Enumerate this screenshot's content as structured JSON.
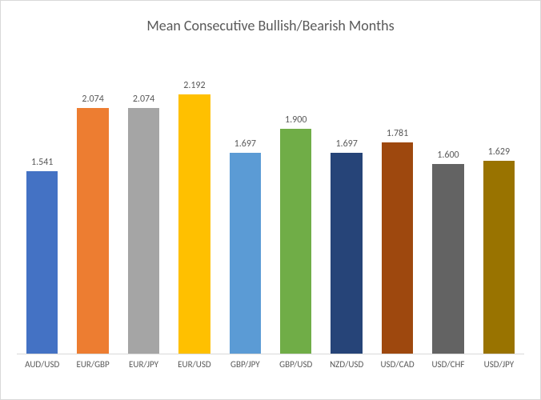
{
  "chart": {
    "type": "bar",
    "title": "Mean Consecutive Bullish/Bearish Months",
    "title_fontsize": 18,
    "title_color": "#595959",
    "background_color": "#ffffff",
    "border_color": "#d9d9d9",
    "axis_line_color": "#d9d9d9",
    "label_color": "#595959",
    "label_fontsize": 11,
    "value_fontsize": 12,
    "ylim": [
      0,
      2.5
    ],
    "bar_width": 0.62,
    "categories": [
      "AUD/USD",
      "EUR/GBP",
      "EUR/JPY",
      "EUR/USD",
      "GBP/JPY",
      "GBP/USD",
      "NZD/USD",
      "USD/CAD",
      "USD/CHF",
      "USD/JPY"
    ],
    "values": [
      1.541,
      2.074,
      2.074,
      2.192,
      1.697,
      1.9,
      1.697,
      1.781,
      1.6,
      1.629
    ],
    "value_labels": [
      "1.541",
      "2.074",
      "2.074",
      "2.192",
      "1.697",
      "1.900",
      "1.697",
      "1.781",
      "1.600",
      "1.629"
    ],
    "bar_colors": [
      "#4472c4",
      "#ed7d31",
      "#a5a5a5",
      "#ffc000",
      "#5b9bd5",
      "#70ad47",
      "#264478",
      "#9e480e",
      "#636363",
      "#997300"
    ]
  }
}
